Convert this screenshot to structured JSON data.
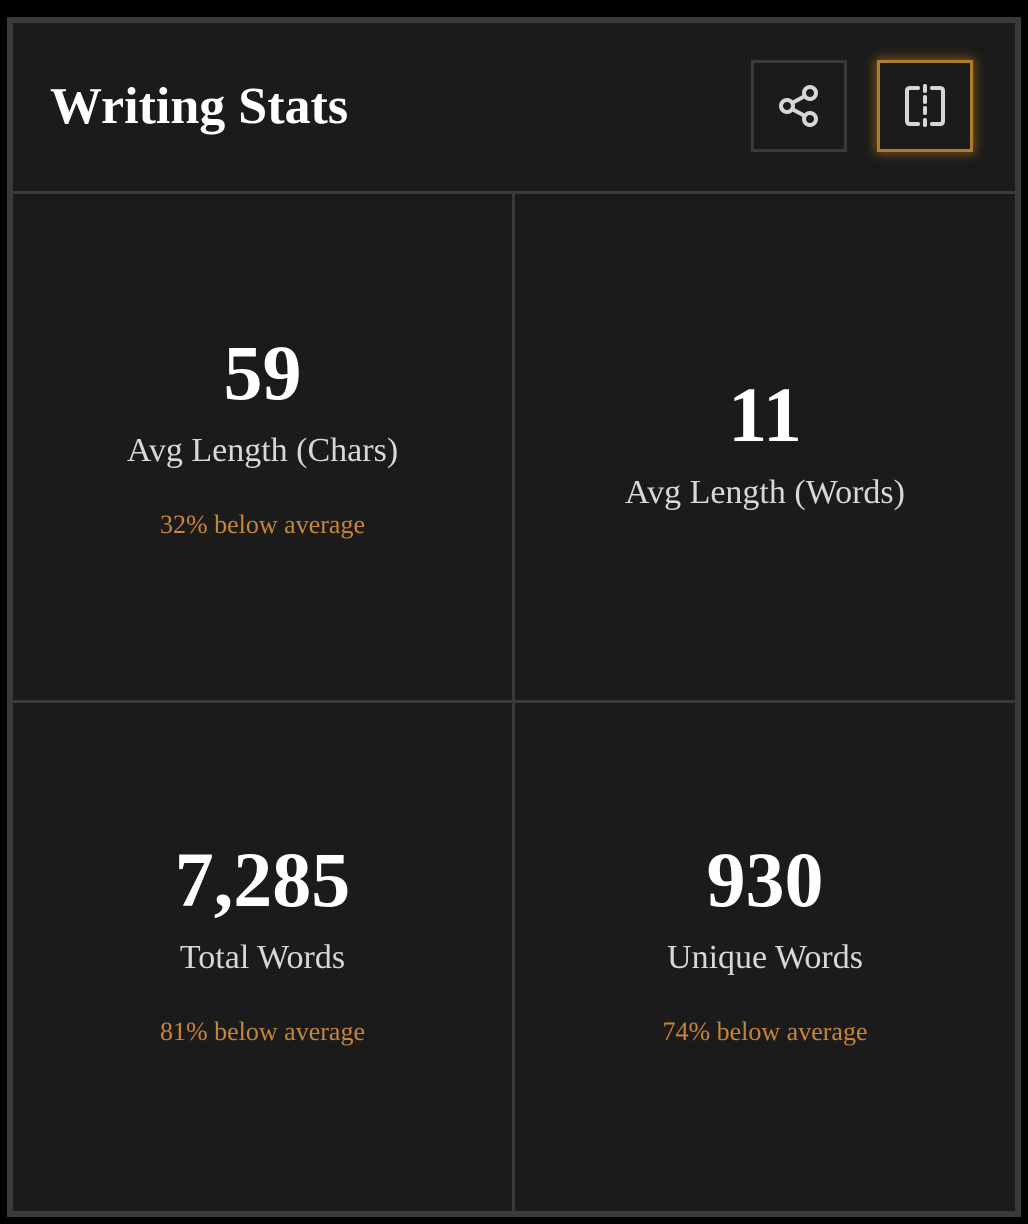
{
  "header": {
    "title": "Writing Stats",
    "share_icon": "share-icon",
    "split_icon": "split-view-icon"
  },
  "colors": {
    "accent": "#c8853a",
    "background": "#1b1b1b",
    "border": "#3a3a3a"
  },
  "stats": [
    {
      "value": "59",
      "label": "Avg Length (Chars)",
      "comparison": "32% below average"
    },
    {
      "value": "11",
      "label": "Avg Length (Words)",
      "comparison": ""
    },
    {
      "value": "7,285",
      "label": "Total Words",
      "comparison": "81% below average"
    },
    {
      "value": "930",
      "label": "Unique Words",
      "comparison": "74% below average"
    }
  ]
}
